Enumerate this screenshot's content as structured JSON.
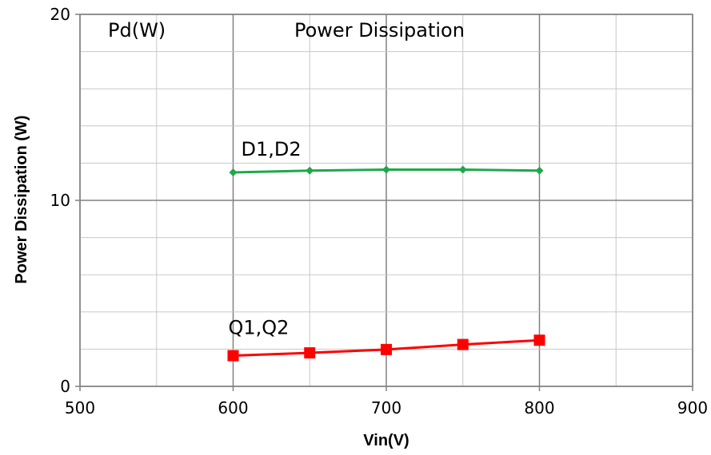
{
  "chart_data": {
    "type": "line",
    "title": "",
    "xlabel": "Vin(V)",
    "ylabel": "Power Dissipation (W)",
    "xlim": [
      500,
      900
    ],
    "ylim": [
      0,
      20
    ],
    "x_ticks": [
      500,
      600,
      700,
      800,
      900
    ],
    "y_ticks": [
      0,
      10,
      20
    ],
    "x_minor_step": 50,
    "y_minor_step": 2,
    "grid": true,
    "legend": "none",
    "annotations": [
      "Pd(W)",
      "Power Dissipation"
    ],
    "series": [
      {
        "name": "D1,D2",
        "color": "#1fa84a",
        "marker": "diamond",
        "x": [
          600,
          650,
          700,
          750,
          800
        ],
        "y": [
          11.5,
          11.6,
          11.65,
          11.65,
          11.6
        ]
      },
      {
        "name": "Q1,Q2",
        "color": "#ff0000",
        "marker": "square",
        "x": [
          600,
          650,
          700,
          750,
          800
        ],
        "y": [
          1.65,
          1.8,
          1.98,
          2.25,
          2.48
        ]
      }
    ]
  }
}
